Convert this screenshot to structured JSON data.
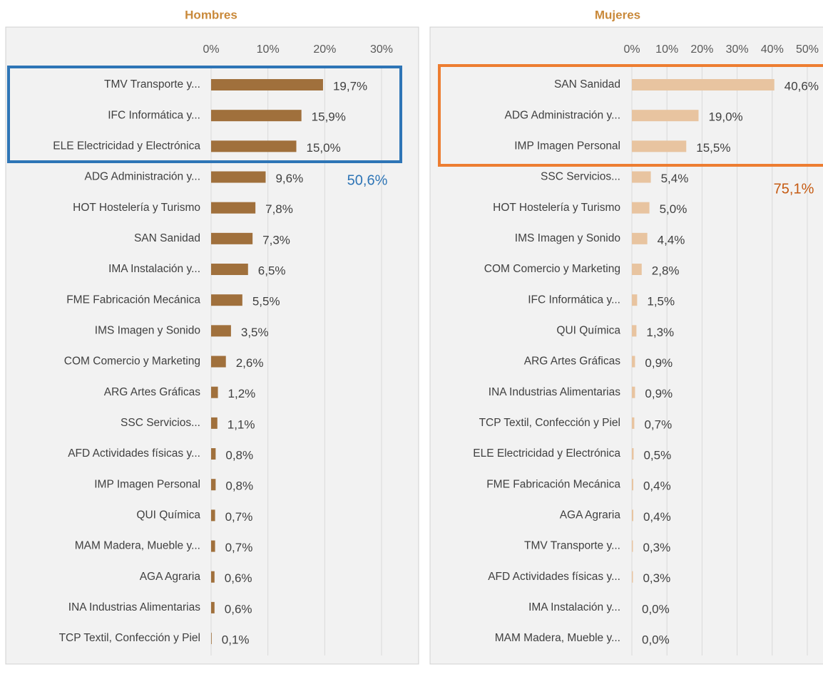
{
  "chart_data": [
    {
      "type": "bar",
      "orientation": "horizontal",
      "title": "Hombres",
      "categories": [
        "TMV Transporte y...",
        "IFC Informática y...",
        "ELE Electricidad y Electrónica",
        "ADG Administración y...",
        "HOT Hostelería y Turismo",
        "SAN Sanidad",
        "IMA Instalación y...",
        "FME Fabricación Mecánica",
        "IMS Imagen y Sonido",
        "COM Comercio y Marketing",
        "ARG Artes Gráficas",
        "SSC Servicios...",
        "AFD Actividades físicas y...",
        "IMP Imagen Personal",
        "QUI Química",
        "MAM Madera, Mueble y...",
        "AGA Agraria",
        "INA Industrias Alimentarias",
        "TCP Textil, Confección y Piel"
      ],
      "values": [
        19.7,
        15.9,
        15.0,
        9.6,
        7.8,
        7.3,
        6.5,
        5.5,
        3.5,
        2.6,
        1.2,
        1.1,
        0.8,
        0.8,
        0.7,
        0.7,
        0.6,
        0.6,
        0.1
      ],
      "value_labels": [
        "19,7%",
        "15,9%",
        "15,0%",
        "9,6%",
        "7,8%",
        "7,3%",
        "6,5%",
        "5,5%",
        "3,5%",
        "2,6%",
        "1,2%",
        "1,1%",
        "0,8%",
        "0,8%",
        "0,7%",
        "0,7%",
        "0,6%",
        "0,6%",
        "0,1%"
      ],
      "color": "#a0703c",
      "xlim": [
        0,
        30
      ],
      "xticks": [
        {
          "value": 0,
          "label": "0%"
        },
        {
          "value": 10,
          "label": "10%"
        },
        {
          "value": 20,
          "label": "20%"
        },
        {
          "value": 30,
          "label": "30%"
        }
      ],
      "grid": true,
      "annotation": "50,6%",
      "annotation_color": "#2e75b6"
    },
    {
      "type": "bar",
      "orientation": "horizontal",
      "title": "Mujeres",
      "categories": [
        "SAN Sanidad",
        "ADG Administración y...",
        "IMP Imagen Personal",
        "SSC Servicios...",
        "HOT Hostelería y Turismo",
        "IMS Imagen y Sonido",
        "COM Comercio y Marketing",
        "IFC Informática y...",
        "QUI Química",
        "ARG Artes Gráficas",
        "INA Industrias Alimentarias",
        "TCP Textil, Confección y Piel",
        "ELE Electricidad y Electrónica",
        "FME Fabricación Mecánica",
        "AGA Agraria",
        "TMV Transporte y...",
        "AFD Actividades físicas y...",
        "IMA Instalación y...",
        "MAM Madera, Mueble y..."
      ],
      "values": [
        40.6,
        19.0,
        15.5,
        5.4,
        5.0,
        4.4,
        2.8,
        1.5,
        1.3,
        0.9,
        0.9,
        0.7,
        0.5,
        0.4,
        0.4,
        0.3,
        0.3,
        0.0,
        0.0
      ],
      "value_labels": [
        "40,6%",
        "19,0%",
        "15,5%",
        "5,4%",
        "5,0%",
        "4,4%",
        "2,8%",
        "1,5%",
        "1,3%",
        "0,9%",
        "0,9%",
        "0,7%",
        "0,5%",
        "0,4%",
        "0,4%",
        "0,3%",
        "0,3%",
        "0,0%",
        "0,0%"
      ],
      "color": "#e8c4a0",
      "xlim": [
        0,
        50
      ],
      "xticks": [
        {
          "value": 0,
          "label": "0%"
        },
        {
          "value": 10,
          "label": "10%"
        },
        {
          "value": 20,
          "label": "20%"
        },
        {
          "value": 30,
          "label": "30%"
        },
        {
          "value": 40,
          "label": "40%"
        },
        {
          "value": 50,
          "label": "50%"
        }
      ],
      "grid": true,
      "annotation": "75,1%",
      "annotation_color": "#c55a11"
    }
  ]
}
